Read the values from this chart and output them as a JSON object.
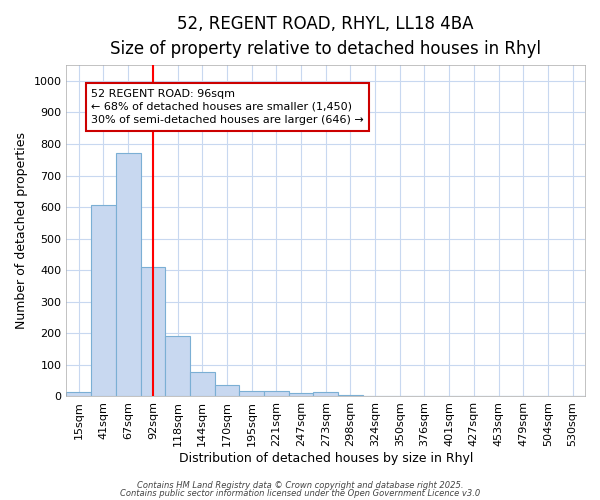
{
  "title_line1": "52, REGENT ROAD, RHYL, LL18 4BA",
  "title_line2": "Size of property relative to detached houses in Rhyl",
  "xlabel": "Distribution of detached houses by size in Rhyl",
  "ylabel": "Number of detached properties",
  "categories": [
    "15sqm",
    "41sqm",
    "67sqm",
    "92sqm",
    "118sqm",
    "144sqm",
    "170sqm",
    "195sqm",
    "221sqm",
    "247sqm",
    "273sqm",
    "298sqm",
    "324sqm",
    "350sqm",
    "376sqm",
    "401sqm",
    "427sqm",
    "453sqm",
    "479sqm",
    "504sqm",
    "530sqm"
  ],
  "values": [
    15,
    607,
    770,
    410,
    192,
    77,
    37,
    18,
    18,
    10,
    13,
    5,
    0,
    0,
    0,
    0,
    0,
    0,
    0,
    0,
    0
  ],
  "bar_color": "#c8d8f0",
  "bar_edge_color": "#7bafd4",
  "red_line_x": 3,
  "annotation_text": "52 REGENT ROAD: 96sqm\n← 68% of detached houses are smaller (1,450)\n30% of semi-detached houses are larger (646) →",
  "annotation_box_facecolor": "#ffffff",
  "annotation_box_edgecolor": "#cc0000",
  "ylim": [
    0,
    1050
  ],
  "yticks": [
    0,
    100,
    200,
    300,
    400,
    500,
    600,
    700,
    800,
    900,
    1000
  ],
  "background_color": "#ffffff",
  "grid_color": "#c8d8f0",
  "footer_line1": "Contains HM Land Registry data © Crown copyright and database right 2025.",
  "footer_line2": "Contains public sector information licensed under the Open Government Licence v3.0",
  "title_fontsize": 12,
  "subtitle_fontsize": 10,
  "axis_label_fontsize": 9,
  "tick_fontsize": 8,
  "annotation_fontsize": 8,
  "footer_fontsize": 6
}
